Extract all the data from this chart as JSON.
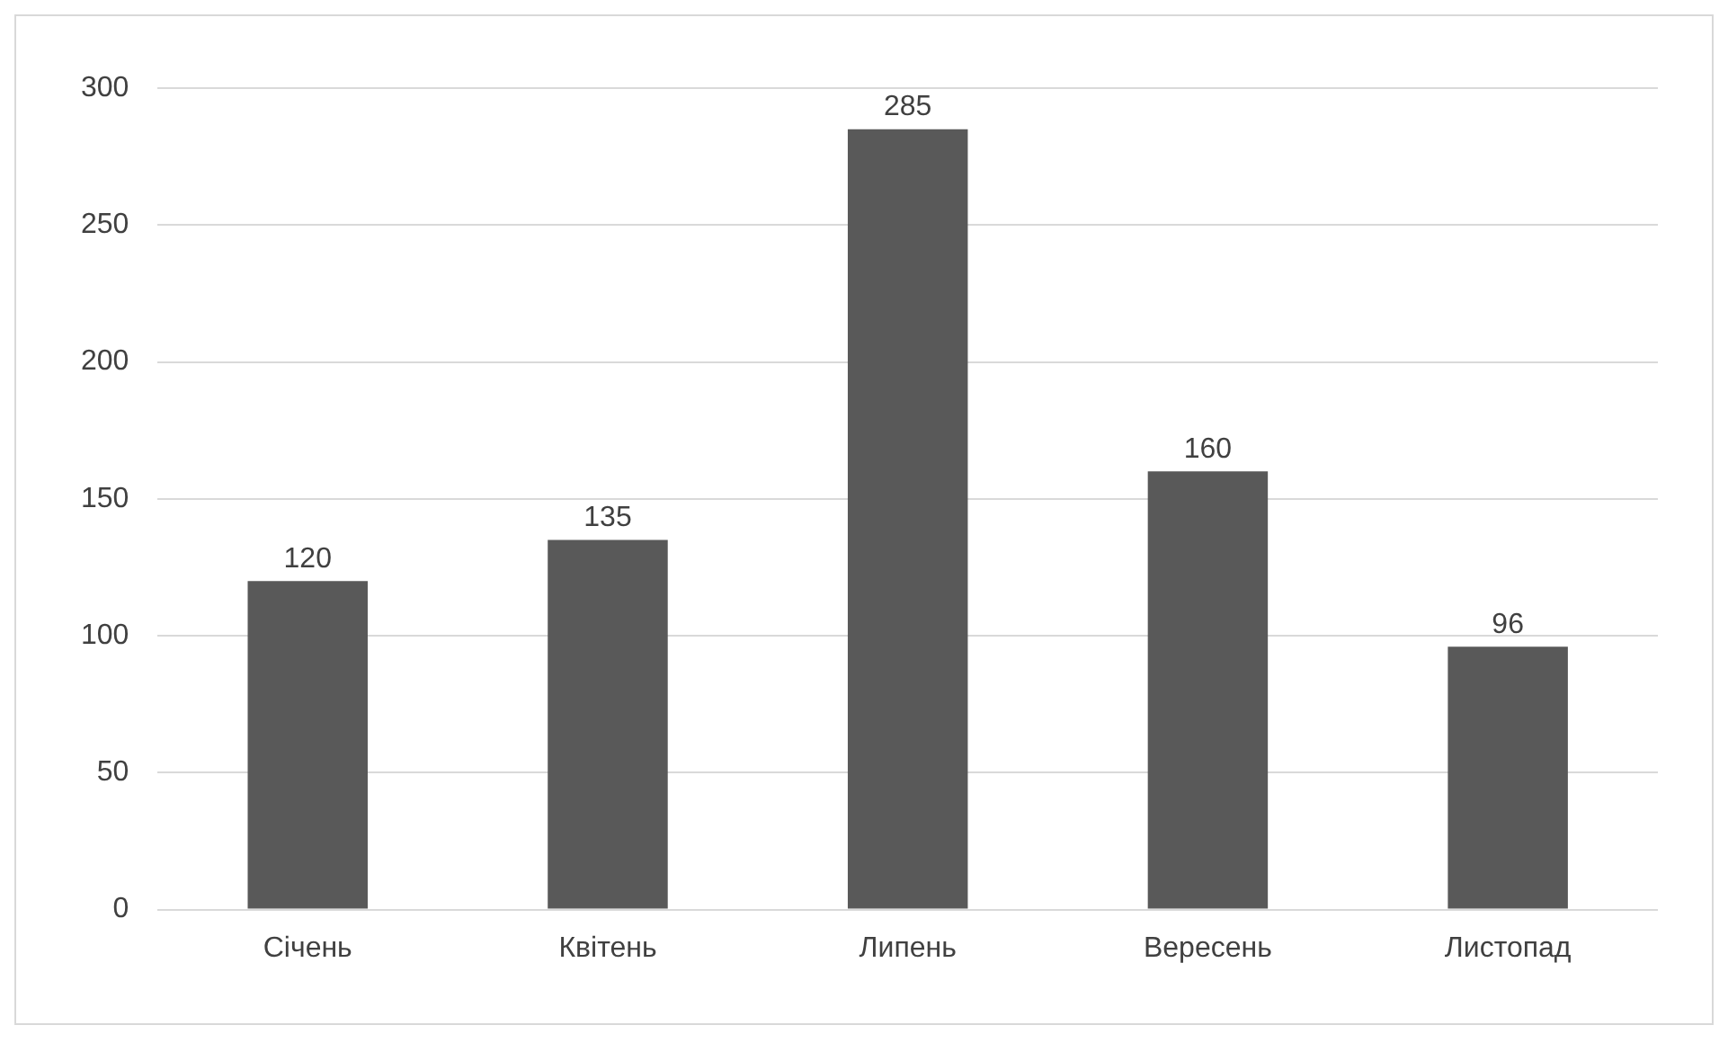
{
  "chart_data": {
    "type": "bar",
    "categories": [
      "Січень",
      "Квітень",
      "Липень",
      "Вересень",
      "Листопад"
    ],
    "values": [
      120,
      135,
      285,
      160,
      96
    ],
    "color": "#595959",
    "ylim": [
      0,
      300
    ],
    "yticks": [
      0,
      50,
      100,
      150,
      200,
      250,
      300
    ],
    "grid": "y",
    "data_labels": true,
    "legend": false
  }
}
